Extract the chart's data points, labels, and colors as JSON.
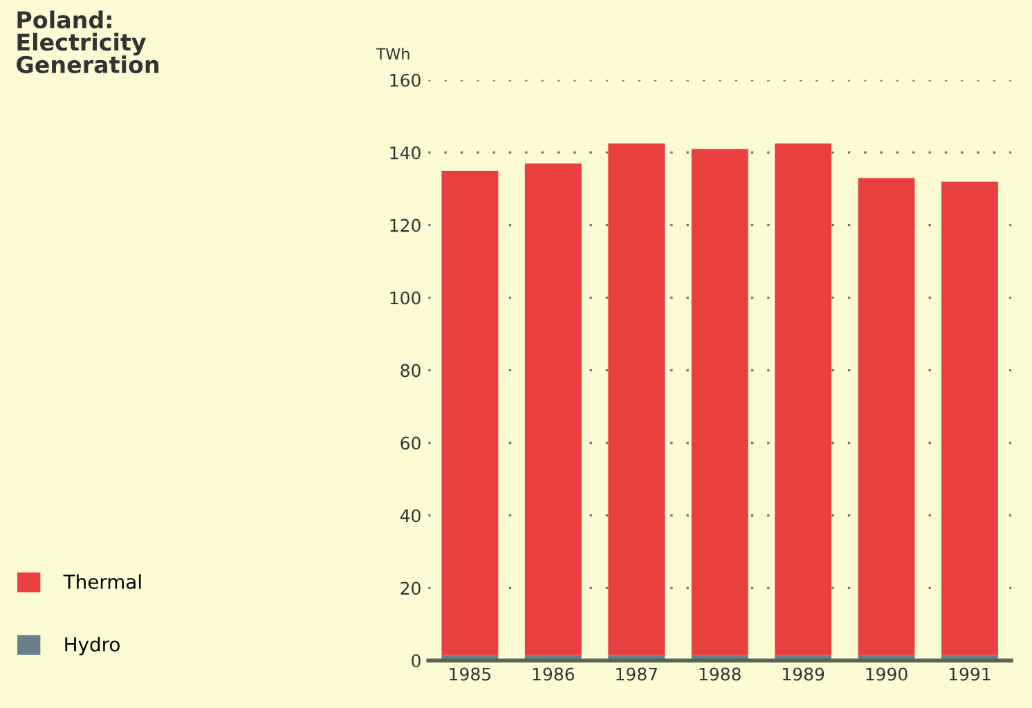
{
  "chart_data": {
    "type": "bar",
    "title": "Poland:\nElectricity\nGeneration",
    "ylabel": "TWh",
    "categories": [
      "1985",
      "1986",
      "1987",
      "1988",
      "1989",
      "1990",
      "1991"
    ],
    "series": [
      {
        "name": "Hydro",
        "color": "#6a7f8c",
        "values": [
          1.5,
          1.5,
          1.5,
          1.5,
          1.5,
          1.5,
          1.5
        ]
      },
      {
        "name": "Thermal",
        "color": "#e8403f",
        "values": [
          133.5,
          135.5,
          141,
          139.5,
          141,
          131.5,
          130.5
        ]
      }
    ],
    "stacked": true,
    "ylim": [
      0,
      160
    ],
    "yticks": [
      0,
      20,
      40,
      60,
      80,
      100,
      120,
      140,
      160
    ],
    "grid": "y",
    "legend": "bottom left"
  }
}
